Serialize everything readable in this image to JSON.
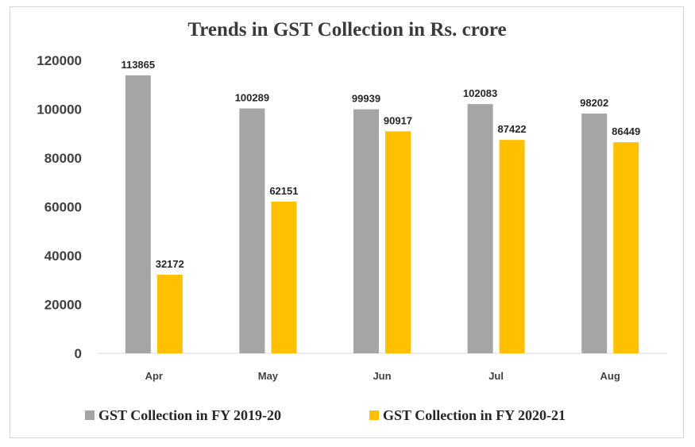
{
  "chart_data": {
    "type": "bar",
    "title": "Trends in GST Collection in Rs. crore",
    "categories": [
      "Apr",
      "May",
      "Jun",
      "Jul",
      "Aug"
    ],
    "series": [
      {
        "name": "GST Collection in FY 2019-20",
        "color": "#a5a5a5",
        "values": [
          113865,
          100289,
          99939,
          102083,
          98202
        ]
      },
      {
        "name": "GST Collection in FY 2020-21",
        "color": "#ffc000",
        "values": [
          32172,
          62151,
          90917,
          87422,
          86449
        ]
      }
    ],
    "ylim": [
      0,
      120000
    ],
    "yticks": [
      "0",
      "20000",
      "40000",
      "60000",
      "80000",
      "100000",
      "120000"
    ],
    "xlabel": "",
    "ylabel": "",
    "legend": "bottom",
    "grid": false,
    "data_labels": true
  }
}
